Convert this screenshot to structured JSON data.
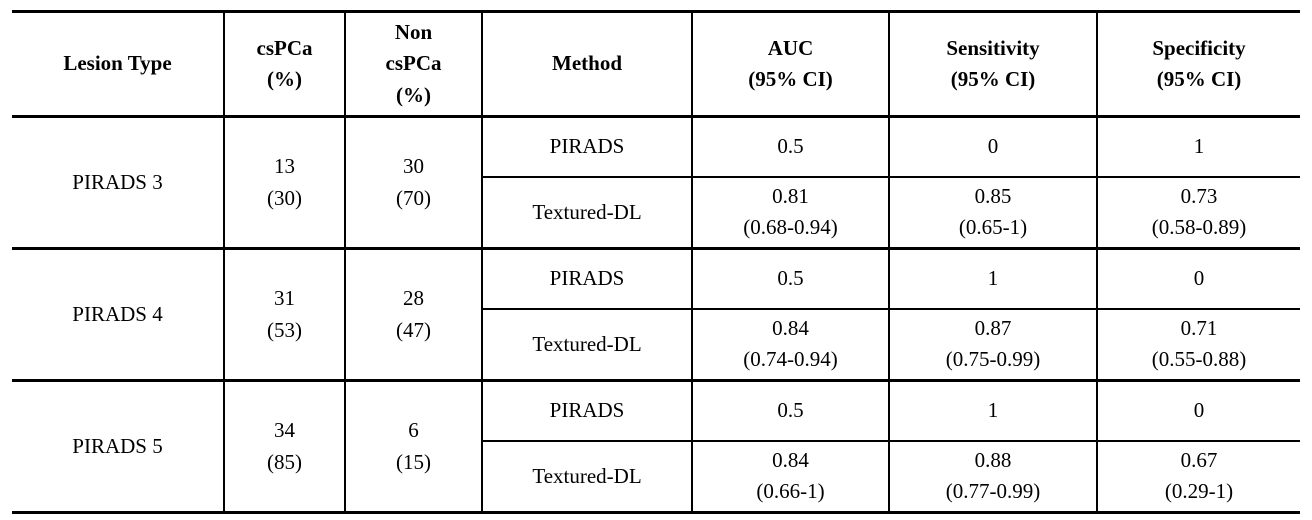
{
  "colors": {
    "background": "#ffffff",
    "text": "#000000",
    "border": "#000000"
  },
  "table": {
    "headers": [
      {
        "lines": [
          "Lesion Type"
        ]
      },
      {
        "lines": [
          "csPCa",
          "(%)"
        ]
      },
      {
        "lines": [
          "Non",
          "csPCa",
          "(%)"
        ]
      },
      {
        "lines": [
          "Method"
        ]
      },
      {
        "lines": [
          "AUC",
          "(95% CI)"
        ]
      },
      {
        "lines": [
          "Sensitivity",
          "(95% CI)"
        ]
      },
      {
        "lines": [
          "Specificity",
          "(95% CI)"
        ]
      }
    ],
    "groups": [
      {
        "lesion": "PIRADS 3",
        "cspca": {
          "n": "13",
          "pct": "(30)"
        },
        "non_cspca": {
          "n": "30",
          "pct": "(70)"
        },
        "rows": [
          {
            "method": "PIRADS",
            "auc": {
              "value": "0.5"
            },
            "sensitivity": {
              "value": "0"
            },
            "specificity": {
              "value": "1"
            }
          },
          {
            "method": "Textured-DL",
            "auc": {
              "value": "0.81",
              "ci": "(0.68-0.94)"
            },
            "sensitivity": {
              "value": "0.85",
              "ci": "(0.65-1)"
            },
            "specificity": {
              "value": "0.73",
              "ci": "(0.58-0.89)"
            }
          }
        ]
      },
      {
        "lesion": "PIRADS 4",
        "cspca": {
          "n": "31",
          "pct": "(53)"
        },
        "non_cspca": {
          "n": "28",
          "pct": "(47)"
        },
        "rows": [
          {
            "method": "PIRADS",
            "auc": {
              "value": "0.5"
            },
            "sensitivity": {
              "value": "1"
            },
            "specificity": {
              "value": "0"
            }
          },
          {
            "method": "Textured-DL",
            "auc": {
              "value": "0.84",
              "ci": "(0.74-0.94)"
            },
            "sensitivity": {
              "value": "0.87",
              "ci": "(0.75-0.99)"
            },
            "specificity": {
              "value": "0.71",
              "ci": "(0.55-0.88)"
            }
          }
        ]
      },
      {
        "lesion": "PIRADS 5",
        "cspca": {
          "n": "34",
          "pct": "(85)"
        },
        "non_cspca": {
          "n": "6",
          "pct": "(15)"
        },
        "rows": [
          {
            "method": "PIRADS",
            "auc": {
              "value": "0.5"
            },
            "sensitivity": {
              "value": "1"
            },
            "specificity": {
              "value": "0"
            }
          },
          {
            "method": "Textured-DL",
            "auc": {
              "value": "0.84",
              "ci": "(0.66-1)"
            },
            "sensitivity": {
              "value": "0.88",
              "ci": "(0.77-0.99)"
            },
            "specificity": {
              "value": "0.67",
              "ci": "(0.29-1)"
            }
          }
        ]
      }
    ]
  }
}
